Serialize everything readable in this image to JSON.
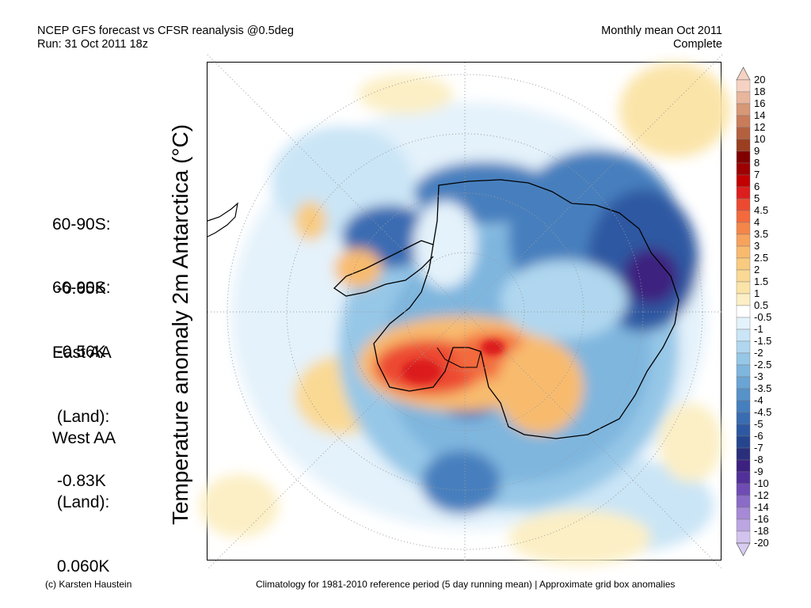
{
  "header": {
    "line1": "NCEP GFS forecast vs CFSR reanalysis @0.5deg",
    "line2": "Run: 31 Oct 2011 18z",
    "right1": "Monthly mean Oct 2011",
    "right2": "Complete"
  },
  "y_title": "Temperature anomaly 2m Antarctica (°C)",
  "stats": [
    {
      "label": "60-90S:",
      "value": " -0.65K"
    },
    {
      "label": "66-90S:",
      "value": " -0.56K"
    },
    {
      "label": "East AA",
      "label2": " (Land):",
      "value": " -0.83K"
    },
    {
      "label": "West AA",
      "label2": " (Land):",
      "value": " 0.060K"
    }
  ],
  "colorbar": {
    "labels": [
      "20",
      "18",
      "16",
      "14",
      "12",
      "10",
      "9",
      "8",
      "7",
      "6",
      "5",
      "4.5",
      "4",
      "3.5",
      "3",
      "2.5",
      "2",
      "1.5",
      "1",
      "0.5",
      "-0.5",
      "-1",
      "-1.5",
      "-2",
      "-2.5",
      "-3",
      "-3.5",
      "-4",
      "-4.5",
      "-5",
      "-6",
      "-7",
      "-8",
      "-9",
      "-10",
      "-12",
      "-14",
      "-16",
      "-18",
      "-20"
    ],
    "colors": [
      "#f6d2c2",
      "#e8b59d",
      "#d69876",
      "#c87c5a",
      "#b4603e",
      "#9c3e20",
      "#800000",
      "#9c0000",
      "#c20000",
      "#dc1e1e",
      "#ec4a30",
      "#f36a3c",
      "#f5864a",
      "#f7a35e",
      "#f8bb6e",
      "#f8cb80",
      "#fad994",
      "#fbe4a8",
      "#fcefc5",
      "#ffffff",
      "#e4f2fb",
      "#cae5f6",
      "#b0d7ef",
      "#96c7e7",
      "#7fb6de",
      "#6aa4d4",
      "#5792c9",
      "#467fbe",
      "#3a6cb2",
      "#2e58a2",
      "#25458f",
      "#2a2f7c",
      "#3d2180",
      "#52309a",
      "#6e4cb3",
      "#8a6cc6",
      "#a68ad5",
      "#bca6e2",
      "#d2c4ee"
    ],
    "top_arrow_color": "#f6d2c2",
    "bottom_arrow_color": "#d8ccf2"
  },
  "footer": {
    "left": "(c) Karsten Haustein",
    "right": "Climatology for 1981-2010 reference period (5 day running mean) | Approximate grid box anomalies"
  }
}
